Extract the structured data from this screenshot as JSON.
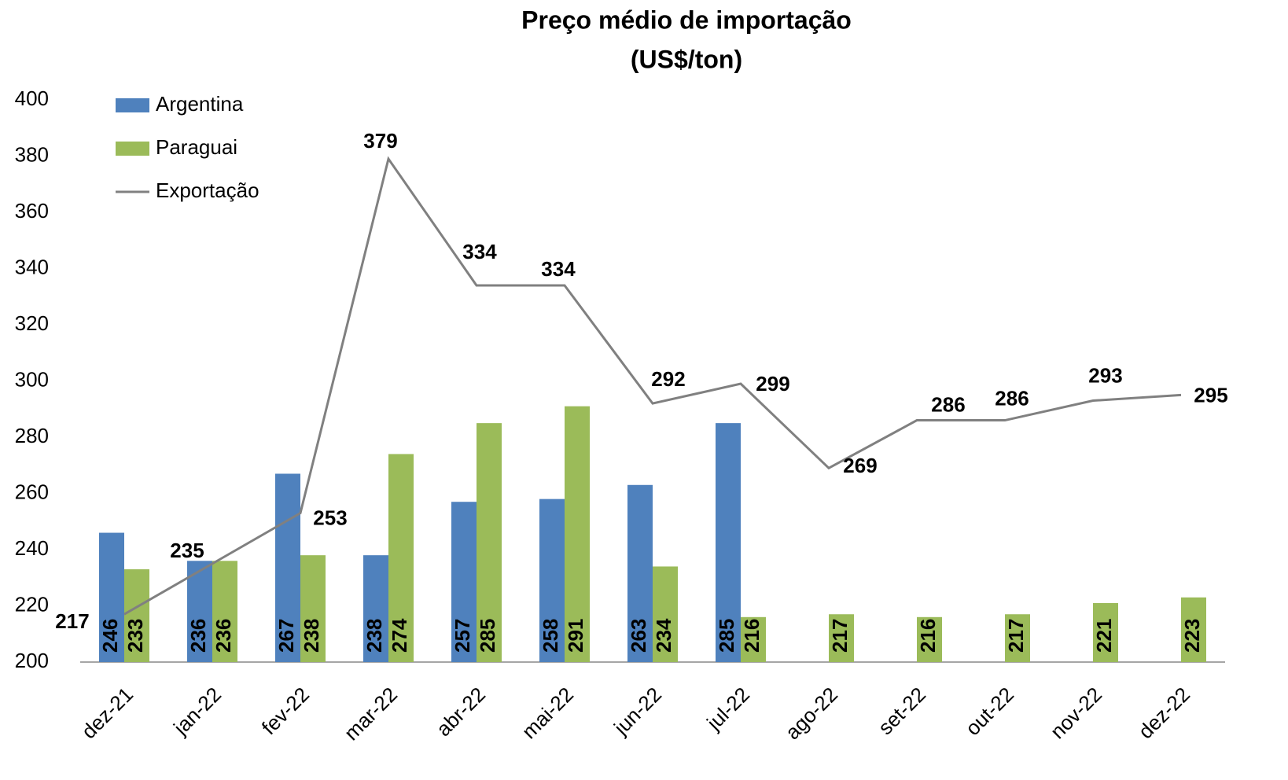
{
  "chart_data": {
    "type": "bar",
    "title": "Preço médio de importação",
    "subtitle": "(US$/ton)",
    "categories": [
      "dez-21",
      "jan-22",
      "fev-22",
      "mar-22",
      "abr-22",
      "mai-22",
      "jun-22",
      "jul-22",
      "ago-22",
      "set-22",
      "out-22",
      "nov-22",
      "dez-22"
    ],
    "series": [
      {
        "name": "Argentina",
        "type": "bar",
        "color": "#4f81bd",
        "values": [
          246,
          236,
          267,
          238,
          257,
          258,
          263,
          285,
          null,
          null,
          null,
          null,
          null
        ]
      },
      {
        "name": "Paraguai",
        "type": "bar",
        "color": "#9bbb59",
        "values": [
          233,
          236,
          238,
          274,
          285,
          291,
          234,
          216,
          217,
          216,
          217,
          221,
          223
        ]
      },
      {
        "name": "Exportação",
        "type": "line",
        "color": "#808080",
        "values": [
          217,
          235,
          253,
          379,
          334,
          334,
          292,
          299,
          269,
          286,
          286,
          293,
          295
        ]
      }
    ],
    "ylim": [
      200,
      400
    ],
    "yticks": [
      200,
      220,
      240,
      260,
      280,
      300,
      320,
      340,
      360,
      380,
      400
    ],
    "grid": false,
    "legend": "top-left"
  }
}
